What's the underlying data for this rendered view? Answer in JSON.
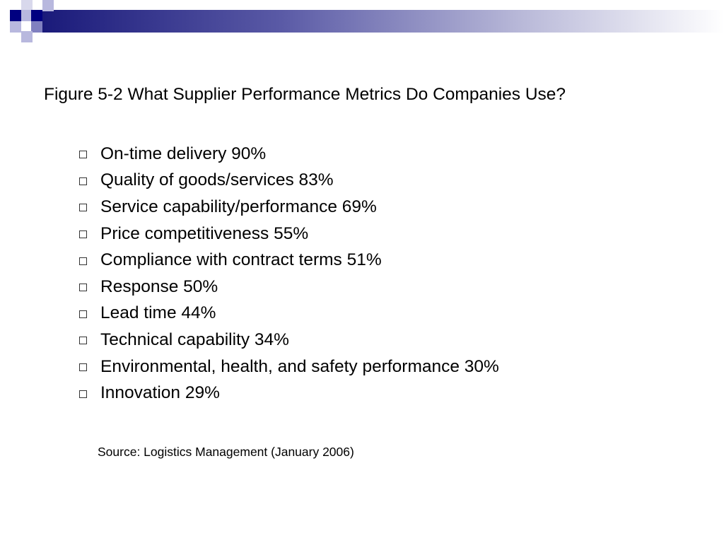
{
  "slide": {
    "title": "Figure 5-2 What Supplier Performance Metrics Do Companies Use?",
    "bullet_icon": "hollow-square-bullet",
    "metrics": [
      {
        "text": "On-time delivery 90%"
      },
      {
        "text": "Quality of goods/services 83%"
      },
      {
        "text": "Service capability/performance 69%"
      },
      {
        "text": "Price competitiveness 55%"
      },
      {
        "text": "Compliance with contract terms 51%"
      },
      {
        "text": "Response 50%"
      },
      {
        "text": "Lead time 44%"
      },
      {
        "text": "Technical capability 34%"
      },
      {
        "text": "Environmental, health, and safety performance 30%"
      },
      {
        "text": "Innovation 29%"
      }
    ],
    "source": "Source: Logistics Management (January 2006)"
  },
  "theme": {
    "accent_dark": "#000080",
    "accent_mid": "#8080c0",
    "accent_light": "#b8b8de"
  }
}
